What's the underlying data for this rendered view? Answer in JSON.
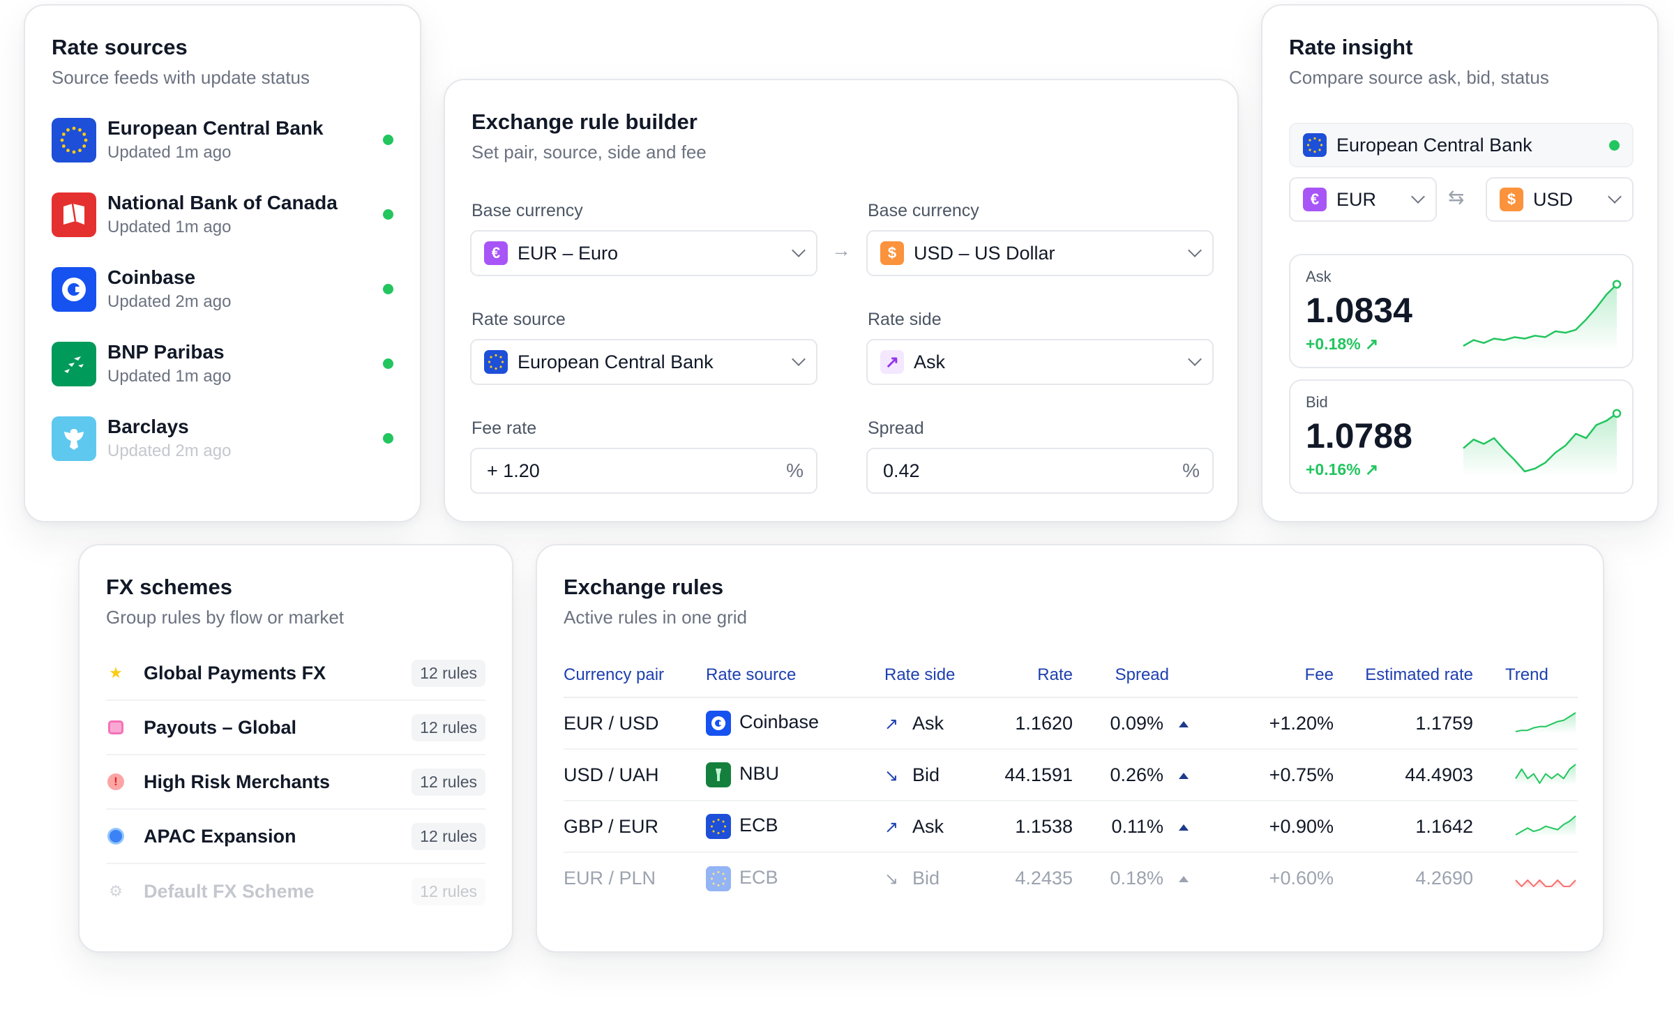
{
  "rate_sources": {
    "title": "Rate sources",
    "subtitle": "Source feeds with update status",
    "items": [
      {
        "name": "European Central Bank",
        "updated": "Updated 1m ago"
      },
      {
        "name": "National Bank of Canada",
        "updated": "Updated 1m ago"
      },
      {
        "name": "Coinbase",
        "updated": "Updated 2m ago"
      },
      {
        "name": "BNP Paribas",
        "updated": "Updated 1m ago"
      },
      {
        "name": "Barclays",
        "updated": "Updated 2m ago"
      }
    ]
  },
  "rule_builder": {
    "title": "Exchange rule builder",
    "subtitle": "Set pair, source, side and fee",
    "base_label": "Base currency",
    "base_value": "EUR – Euro",
    "quote_label": "Base currency",
    "quote_value": "USD – US Dollar",
    "source_label": "Rate source",
    "source_value": "European Central Bank",
    "side_label": "Rate side",
    "side_value": "Ask",
    "fee_label": "Fee rate",
    "fee_value": "+ 1.20",
    "spread_label": "Spread",
    "spread_value": "0.42",
    "percent": "%"
  },
  "rate_insight": {
    "title": "Rate insight",
    "subtitle": "Compare source ask, bid, status",
    "source": "European Central Bank",
    "from": "EUR",
    "to": "USD",
    "ask": {
      "label": "Ask",
      "value": "1.0834",
      "change": "+0.18% ↗",
      "trend": [
        10,
        14,
        12,
        15,
        14,
        16,
        15,
        17,
        16,
        20,
        19,
        21,
        28,
        36,
        45,
        52
      ]
    },
    "bid": {
      "label": "Bid",
      "value": "1.0788",
      "change": "+0.16% ↗",
      "trend": [
        34,
        40,
        37,
        41,
        33,
        26,
        18,
        20,
        24,
        31,
        36,
        44,
        41,
        50,
        53,
        58
      ]
    }
  },
  "fx_schemes": {
    "title": "FX schemes",
    "subtitle": "Group rules by flow or market",
    "items": [
      {
        "name": "Global Payments FX",
        "count": "12 rules",
        "icon": "star-icon"
      },
      {
        "name": "Payouts – Global",
        "count": "12 rules",
        "icon": "inbox-icon"
      },
      {
        "name": "High Risk Merchants",
        "count": "12 rules",
        "icon": "alert-icon"
      },
      {
        "name": "APAC Expansion",
        "count": "12 rules",
        "icon": "globe-icon"
      },
      {
        "name": "Default FX Scheme",
        "count": "12 rules",
        "icon": "gear-icon"
      }
    ]
  },
  "exchange_rules": {
    "title": "Exchange rules",
    "subtitle": "Active rules in one grid",
    "columns": [
      "Currency pair",
      "Rate source",
      "Rate side",
      "Rate",
      "Spread",
      "Fee",
      "Estimated rate",
      "Trend"
    ],
    "rows": [
      {
        "pair": "EUR / USD",
        "source": "Coinbase",
        "side": "Ask",
        "side_arrow": "↗",
        "rate": "1.1620",
        "spread": "0.09%",
        "fee": "+1.20%",
        "est": "1.1759",
        "trend": [
          4,
          5,
          5,
          7,
          8,
          8,
          10,
          12,
          13,
          16,
          19
        ]
      },
      {
        "pair": "USD / UAH",
        "source": "NBU",
        "side": "Bid",
        "side_arrow": "↘",
        "rate": "44.1591",
        "spread": "0.26%",
        "fee": "+0.75%",
        "est": "44.4903",
        "trend": [
          9,
          11,
          9,
          10,
          8,
          10,
          9,
          10,
          9,
          11,
          12
        ]
      },
      {
        "pair": "GBP / EUR",
        "source": "ECB",
        "side": "Ask",
        "side_arrow": "↗",
        "rate": "1.1538",
        "spread": "0.11%",
        "fee": "+0.90%",
        "est": "1.1642",
        "trend": [
          5,
          7,
          9,
          7,
          8,
          10,
          9,
          8,
          11,
          13,
          16
        ]
      },
      {
        "pair": "EUR / PLN",
        "source": "ECB",
        "side": "Bid",
        "side_arrow": "↘",
        "rate": "4.2435",
        "spread": "0.18%",
        "fee": "+0.60%",
        "est": "4.2690",
        "trend": [
          10,
          9,
          10,
          9,
          10,
          9,
          9,
          10,
          9,
          9,
          10
        ]
      }
    ]
  },
  "colors": {
    "accent": "#1e40af",
    "positive": "#22c55e",
    "status_ok": "#22c55e",
    "negative": "#f87171"
  }
}
